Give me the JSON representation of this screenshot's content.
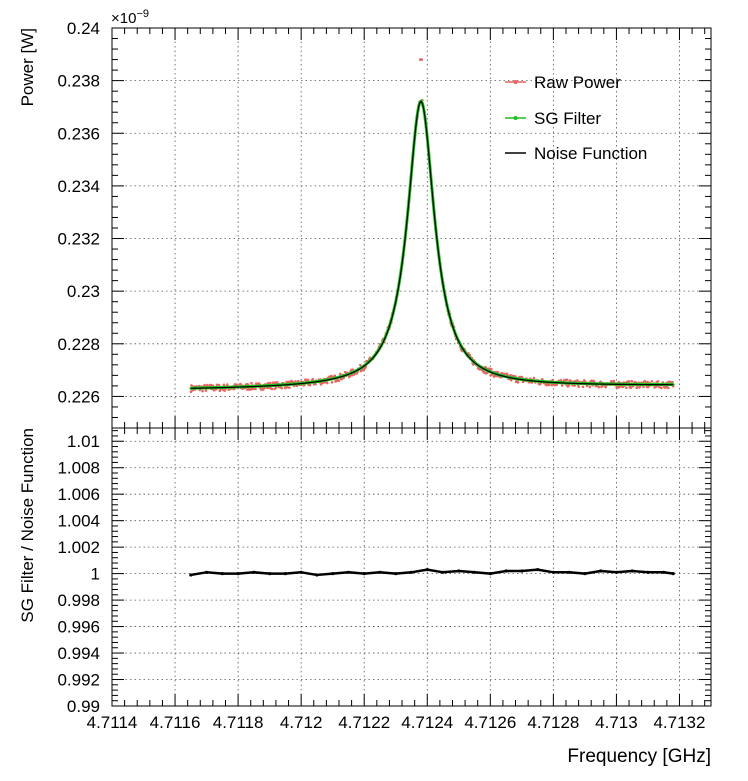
{
  "chart_data": [
    {
      "type": "line",
      "ylabel": "Power [W]",
      "y_multiplier_label": "×10",
      "y_multiplier_exponent": "−9",
      "xlim": [
        4.7114,
        4.7133
      ],
      "ylim": [
        0.2248,
        0.24
      ],
      "x_ticks": [
        4.7114,
        4.7116,
        4.7118,
        4.712,
        4.7122,
        4.7124,
        4.7126,
        4.7128,
        4.713,
        4.7132
      ],
      "y_ticks": [
        0.226,
        0.228,
        0.23,
        0.232,
        0.234,
        0.236,
        0.238,
        0.24
      ],
      "y_tick_labels": [
        "0.226",
        "0.228",
        "0.23",
        "0.232",
        "0.234",
        "0.236",
        "0.238",
        "0.24"
      ],
      "grid": true,
      "legend_position": "top-right",
      "model": {
        "x_range": [
          4.71165,
          4.71318
        ],
        "peak_x": 4.71238,
        "peak_power": 0.23721,
        "baseline_left": 0.22625,
        "baseline_right": 0.2264,
        "half_width": 5.25e-05,
        "spike": {
          "x": 4.71238,
          "value": 0.2388
        }
      },
      "series": [
        {
          "name": "Raw Power",
          "color": "#e8645f",
          "style": "markers"
        },
        {
          "name": "SG Filter",
          "color": "#1fbf1f",
          "style": "line-markers"
        },
        {
          "name": "Noise Function",
          "color": "#000000",
          "style": "line"
        }
      ]
    },
    {
      "type": "line",
      "ylabel": "SG Filter / Noise Function",
      "xlabel": "Frequency [GHz]",
      "xlim": [
        4.7114,
        4.7133
      ],
      "ylim": [
        0.99,
        1.011
      ],
      "x_ticks": [
        4.7114,
        4.7116,
        4.7118,
        4.712,
        4.7122,
        4.7124,
        4.7126,
        4.7128,
        4.713,
        4.7132
      ],
      "x_tick_labels": [
        "4.7114",
        "4.7116",
        "4.7118",
        "4.712",
        "4.7122",
        "4.7124",
        "4.7126",
        "4.7128",
        "4.713",
        "4.7132"
      ],
      "y_ticks": [
        0.99,
        0.992,
        0.994,
        0.996,
        0.998,
        1.0,
        1.002,
        1.004,
        1.006,
        1.008,
        1.01
      ],
      "y_tick_labels": [
        "0.99",
        "0.992",
        "0.994",
        "0.996",
        "0.998",
        "1",
        "1.002",
        "1.004",
        "1.006",
        "1.008",
        "1.01"
      ],
      "grid": true,
      "series": [
        {
          "name": "SG Filter / Noise Function",
          "color": "#000000",
          "x": [
            4.71165,
            4.7117,
            4.71175,
            4.7118,
            4.71185,
            4.7119,
            4.71195,
            4.712,
            4.71205,
            4.7121,
            4.71215,
            4.7122,
            4.71225,
            4.7123,
            4.71235,
            4.7124,
            4.71245,
            4.7125,
            4.71255,
            4.7126,
            4.71265,
            4.7127,
            4.71275,
            4.7128,
            4.71285,
            4.7129,
            4.71295,
            4.713,
            4.71305,
            4.7131,
            4.71315,
            4.71318
          ],
          "values": [
            0.9999,
            1.0001,
            1.0,
            1.0,
            1.0001,
            1.0,
            1.0,
            1.0001,
            0.9999,
            1.0,
            1.0001,
            1.0,
            1.0001,
            1.0,
            1.0001,
            1.0003,
            1.0001,
            1.0002,
            1.0001,
            1.0,
            1.0002,
            1.0002,
            1.0003,
            1.0001,
            1.0001,
            1.0,
            1.0002,
            1.0001,
            1.0002,
            1.0001,
            1.0001,
            1.0
          ]
        }
      ]
    }
  ]
}
